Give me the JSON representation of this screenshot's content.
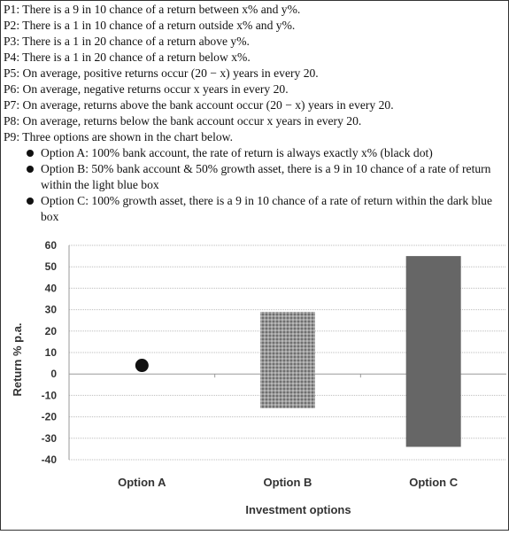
{
  "premises": [
    "P1: There is a 9 in 10 chance of a return between x% and y%.",
    "P2: There is a 1 in 10 chance of a return outside x% and y%.",
    "P3: There is a 1 in 20 chance of a return above y%.",
    "P4: There is a 1 in 20 chance of a return below x%.",
    "P5: On average, positive returns occur (20 − x) years in every 20.",
    "P6: On average, negative returns occur x years in every 20.",
    "P7: On average, returns above the bank account occur (20 − x) years in every 20.",
    "P8: On average, returns below the bank account occur x years in every 20.",
    "P9: Three options are shown in the chart below."
  ],
  "options": [
    "Option A: 100% bank account, the rate of return is always exactly x% (black dot)",
    "Option B: 50% bank account & 50% growth asset, there is a 9 in 10 chance of a rate of return within the light blue box",
    "Option C: 100% growth asset, there is a 9 in 10 chance of a rate of return within the dark blue box"
  ],
  "chart_data": {
    "type": "bar",
    "categories": [
      "Option A",
      "Option B",
      "Option C"
    ],
    "point": {
      "category": "Option A",
      "value": 4
    },
    "ranges": [
      {
        "category": "Option B",
        "low": -16,
        "high": 29,
        "style": "textured"
      },
      {
        "category": "Option C",
        "low": -34,
        "high": 55,
        "style": "solid"
      }
    ],
    "xlabel": "Investment options",
    "ylabel": "Return % p.a.",
    "ylim": [
      -40,
      60
    ],
    "yticks": [
      60,
      50,
      40,
      30,
      20,
      10,
      0,
      -10,
      -20,
      -30,
      -40
    ],
    "grid": true,
    "colors": {
      "point": "#111111",
      "optionB": "#8c8c8c",
      "optionC": "#666666",
      "grid": "#bdbdbd"
    }
  }
}
